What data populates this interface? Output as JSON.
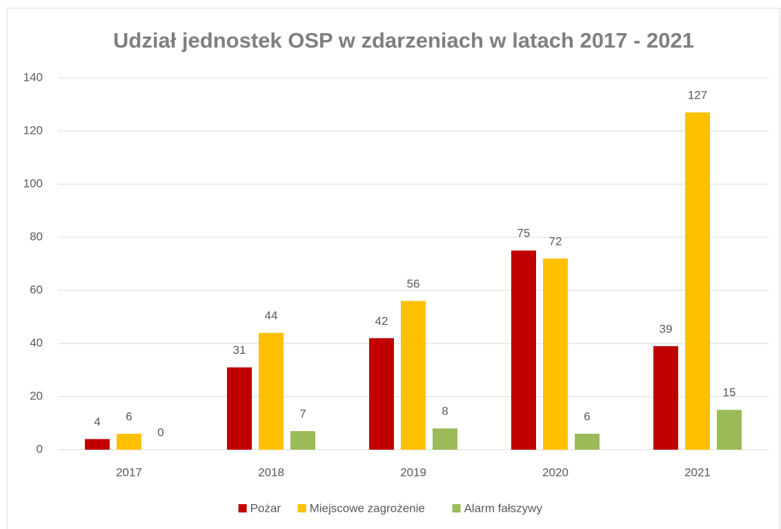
{
  "chart_data": {
    "type": "bar",
    "title": "Udział jednostek OSP w zdarzeniach w latach 2017 - 2021",
    "categories": [
      "2017",
      "2018",
      "2019",
      "2020",
      "2021"
    ],
    "series": [
      {
        "name": "Pożar",
        "color": "#c00000",
        "values": [
          4,
          31,
          42,
          75,
          39
        ]
      },
      {
        "name": "Miejscowe zagrożenie",
        "color": "#ffc000",
        "values": [
          6,
          44,
          56,
          72,
          127
        ]
      },
      {
        "name": "Alarm fałszywy",
        "color": "#9bbb59",
        "values": [
          0,
          7,
          8,
          6,
          15
        ]
      }
    ],
    "ylim": [
      0,
      140
    ],
    "yticks": [
      0,
      20,
      40,
      60,
      80,
      100,
      120,
      140
    ],
    "grid": true,
    "legend": "bottom"
  }
}
